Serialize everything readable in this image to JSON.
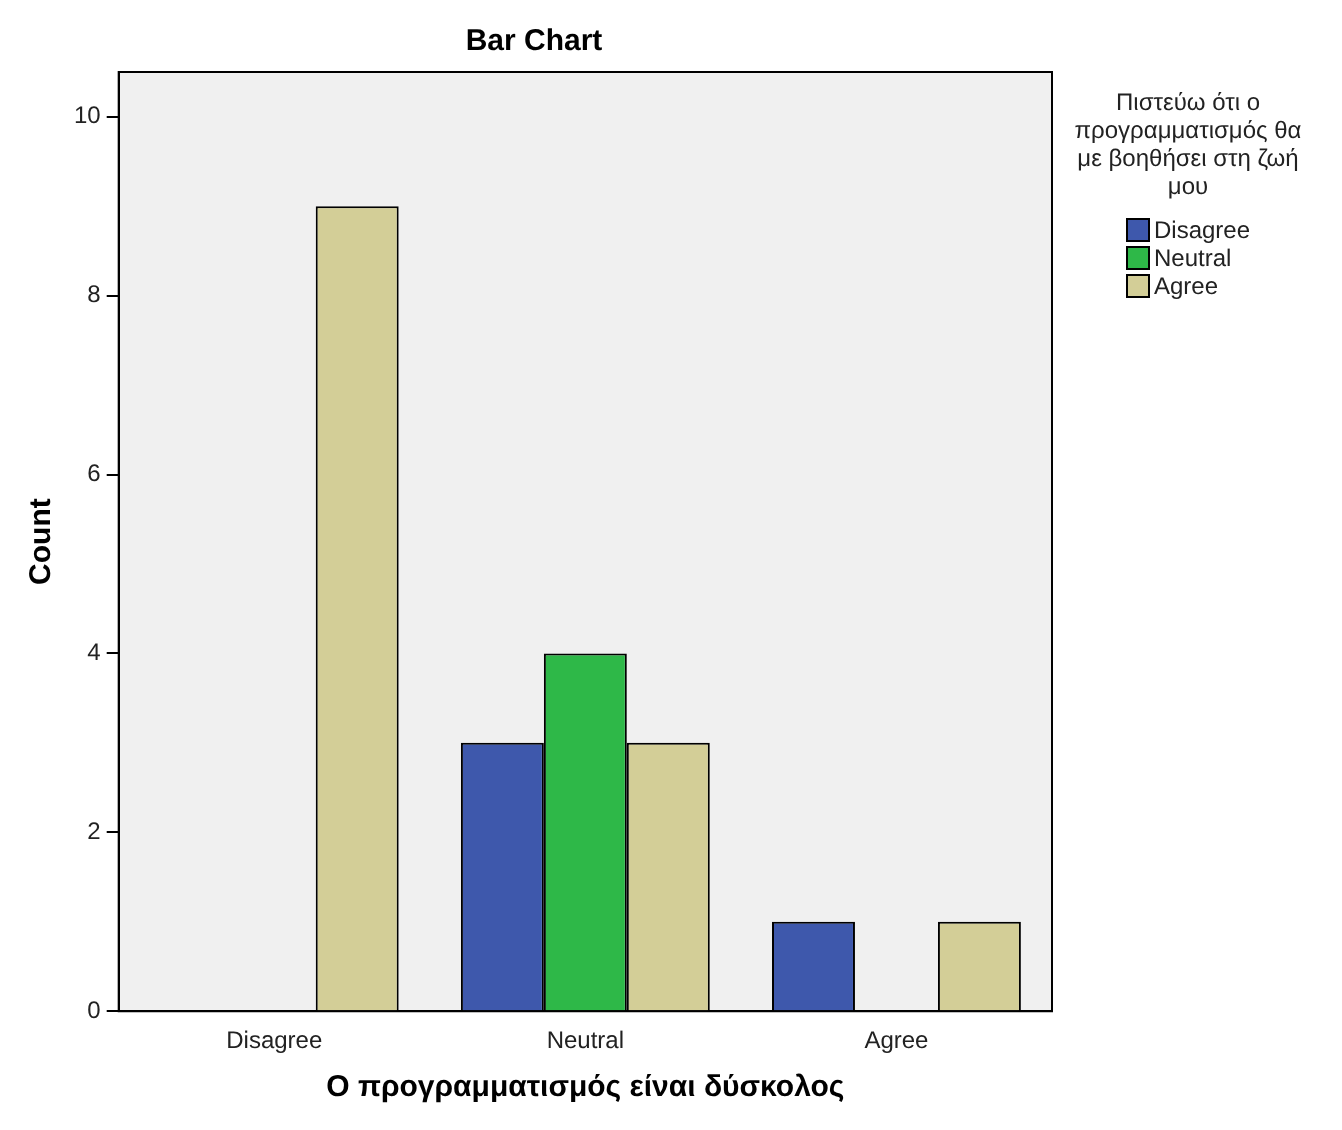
{
  "chart_data": {
    "type": "bar",
    "title": "Bar Chart",
    "xlabel": "Ο προγραμματισμός είναι δύσκολος",
    "ylabel": "Count",
    "legend_title": "Πιστεύω ότι ο προγραμματισμός θα με βοηθήσει στη ζωή μου",
    "categories": [
      "Disagree",
      "Neutral",
      "Agree"
    ],
    "series": [
      {
        "name": "Disagree",
        "color": "#3e58ac",
        "values": [
          null,
          3,
          1
        ]
      },
      {
        "name": "Neutral",
        "color": "#2eb848",
        "values": [
          null,
          4,
          null
        ]
      },
      {
        "name": "Agree",
        "color": "#d3ce97",
        "values": [
          9,
          3,
          1
        ]
      }
    ],
    "ylim": [
      0,
      10.5
    ],
    "yticks": [
      0,
      2,
      4,
      6,
      8,
      10
    ],
    "grid": false,
    "legend": "right"
  }
}
